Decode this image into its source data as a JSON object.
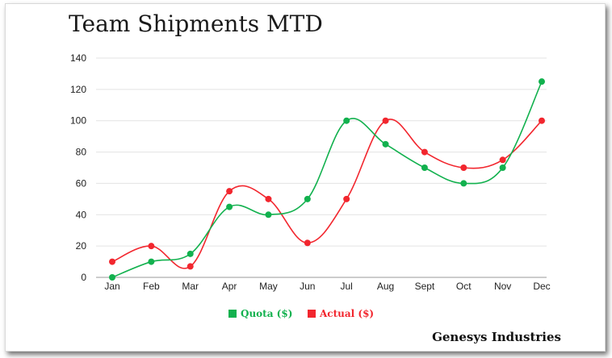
{
  "chart_data": {
    "type": "line",
    "title": "Team Shipments MTD",
    "xlabel": "",
    "ylabel": "",
    "categories": [
      "Jan",
      "Feb",
      "Mar",
      "Apr",
      "May",
      "Jun",
      "Jul",
      "Aug",
      "Sept",
      "Oct",
      "Nov",
      "Dec"
    ],
    "ylim": [
      0,
      140
    ],
    "yticks": [
      0,
      20,
      40,
      60,
      80,
      100,
      120,
      140
    ],
    "grid": true,
    "legend_position": "bottom-center",
    "series": [
      {
        "name": "Quota ($)",
        "color": "#12b14e",
        "values": [
          0,
          10,
          15,
          45,
          40,
          50,
          100,
          85,
          70,
          60,
          70,
          125
        ]
      },
      {
        "name": "Actual ($)",
        "color": "#f2262e",
        "values": [
          10,
          20,
          7,
          55,
          50,
          22,
          50,
          100,
          80,
          70,
          75,
          100
        ]
      }
    ]
  },
  "footer": {
    "company": "Genesys Industries"
  }
}
